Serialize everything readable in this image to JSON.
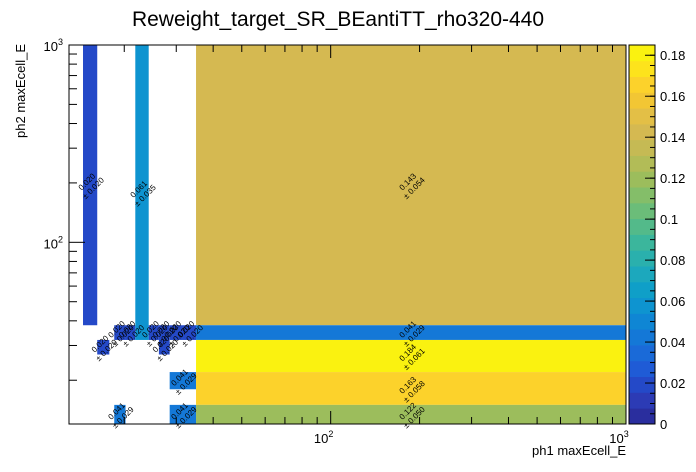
{
  "chart_data": {
    "type": "heatmap",
    "title": "Reweight_target_SR_BEantiTT_rho320-440",
    "xlabel": "ph1 maxEcell_E",
    "ylabel": "ph2 maxEcell_E",
    "x_scale": "log",
    "y_scale": "log",
    "xlim": [
      13,
      1000
    ],
    "ylim": [
      12,
      1000
    ],
    "x_tick_labels": [
      {
        "value": 100,
        "base": "10",
        "exp": "2"
      },
      {
        "value": 1000,
        "base": "10",
        "exp": "3"
      }
    ],
    "y_tick_labels": [
      {
        "value": 100,
        "base": "10",
        "exp": "2"
      },
      {
        "value": 1000,
        "base": "10",
        "exp": "3"
      }
    ],
    "zlim": [
      0,
      0.185
    ],
    "z_ticks": [
      "0",
      "0.02",
      "0.04",
      "0.06",
      "0.08",
      "0.1",
      "0.12",
      "0.14",
      "0.16",
      "0.18"
    ],
    "z_tick_values": [
      0,
      0.02,
      0.04,
      0.06,
      0.08,
      0.1,
      0.12,
      0.14,
      0.16,
      0.18
    ],
    "palette": [
      "#2a2e9e",
      "#2c3bb5",
      "#2449c8",
      "#1f5bd6",
      "#1a6ad8",
      "#1478d7",
      "#0f86d4",
      "#0e94d0",
      "#0f9fc8",
      "#1ca8bd",
      "#2ab0ad",
      "#3bb69c",
      "#53ba8a",
      "#6bbd79",
      "#84be69",
      "#9cbd5c",
      "#b2bc57",
      "#c5ba54",
      "#d5b951",
      "#e3bf46",
      "#f2c634",
      "#fcd22b",
      "#fde31c",
      "#faf210"
    ],
    "cells": [
      {
        "x0": 14.5,
        "x1": 16.2,
        "y0": 38,
        "y1": 1000,
        "value": 0.02,
        "label": "0.020",
        "error": "± 0.020"
      },
      {
        "x0": 16.2,
        "x1": 17.8,
        "y0": 27,
        "y1": 32,
        "value": 0.02,
        "label": "0.020",
        "error": "± 0.020"
      },
      {
        "x0": 18.5,
        "x1": 20.2,
        "y0": 32,
        "y1": 38,
        "value": 0.02,
        "label": "0.020",
        "error": "± 0.020"
      },
      {
        "x0": 18.5,
        "x1": 20.2,
        "y0": 12,
        "y1": 15,
        "value": 0.041,
        "label": "0.041",
        "error": "± 0.029"
      },
      {
        "x0": 20.2,
        "x1": 21.8,
        "y0": 32,
        "y1": 38,
        "value": 0.02,
        "label": "0.020",
        "error": "± 0.020"
      },
      {
        "x0": 21.8,
        "x1": 24.2,
        "y0": 32,
        "y1": 1000,
        "value": 0.061,
        "label": "0.061",
        "error": "± 0.035"
      },
      {
        "x0": 24.2,
        "x1": 26.2,
        "y0": 32,
        "y1": 38,
        "value": 0.02,
        "label": "0.020",
        "error": "± 0.020"
      },
      {
        "x0": 26.2,
        "x1": 28.5,
        "y0": 32,
        "y1": 38,
        "value": 0.02,
        "label": "0.020",
        "error": "± 0.020"
      },
      {
        "x0": 28.5,
        "x1": 31.5,
        "y0": 32,
        "y1": 38,
        "value": 0.02,
        "label": "0.020",
        "error": "± 0.020"
      },
      {
        "x0": 26.2,
        "x1": 28.5,
        "y0": 27,
        "y1": 32,
        "value": 0.02,
        "label": "0.020",
        "error": "± 0.020"
      },
      {
        "x0": 28.5,
        "x1": 35,
        "y0": 18,
        "y1": 22,
        "value": 0.041,
        "label": "0.041",
        "error": "± 0.029"
      },
      {
        "x0": 28.5,
        "x1": 35,
        "y0": 12,
        "y1": 15,
        "value": 0.041,
        "label": "0.041",
        "error": "± 0.029"
      },
      {
        "x0": 31.5,
        "x1": 35,
        "y0": 32,
        "y1": 38,
        "value": 0.02,
        "label": "0.020",
        "error": "± 0.020"
      },
      {
        "x0": 35,
        "x1": 1000,
        "y0": 38,
        "y1": 1000,
        "value": 0.143,
        "label": "0.143",
        "error": "± 0.054"
      },
      {
        "x0": 35,
        "x1": 1000,
        "y0": 32,
        "y1": 38,
        "value": 0.041,
        "label": "0.041",
        "error": "± 0.029"
      },
      {
        "x0": 35,
        "x1": 1000,
        "y0": 22,
        "y1": 32,
        "value": 0.184,
        "label": "0.184",
        "error": "± 0.061"
      },
      {
        "x0": 35,
        "x1": 1000,
        "y0": 15,
        "y1": 22,
        "value": 0.163,
        "label": "0.163",
        "error": "± 0.058"
      },
      {
        "x0": 35,
        "x1": 1000,
        "y0": 12,
        "y1": 15,
        "value": 0.122,
        "label": "0.122",
        "error": "± 0.050"
      }
    ]
  }
}
